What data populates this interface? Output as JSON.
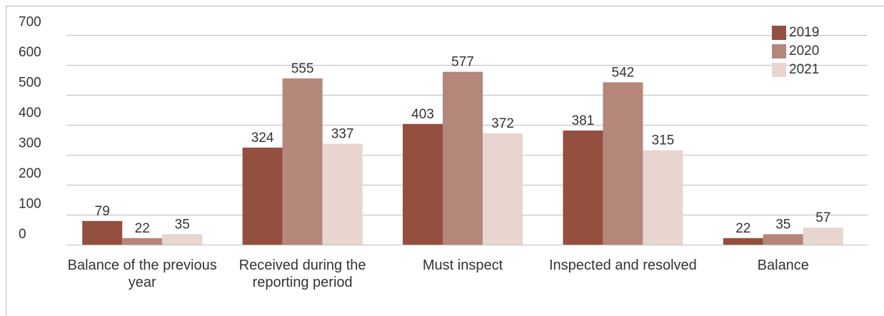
{
  "chart_data": {
    "type": "bar",
    "categories": [
      "Balance of the previous year",
      "Received during the reporting period",
      "Must inspect",
      "Inspected and resolved",
      "Balance"
    ],
    "series": [
      {
        "name": "2019",
        "color": "#954f3f",
        "values": [
          79,
          324,
          403,
          381,
          22
        ]
      },
      {
        "name": "2020",
        "color": "#b5867a",
        "values": [
          22,
          555,
          577,
          542,
          35
        ]
      },
      {
        "name": "2021",
        "color": "#e8d5d0",
        "values": [
          35,
          337,
          372,
          315,
          57
        ]
      }
    ],
    "ylim": [
      0,
      700
    ],
    "yticks": [
      0,
      100,
      200,
      300,
      400,
      500,
      600,
      700
    ],
    "grid": true,
    "legend": "top-right"
  }
}
